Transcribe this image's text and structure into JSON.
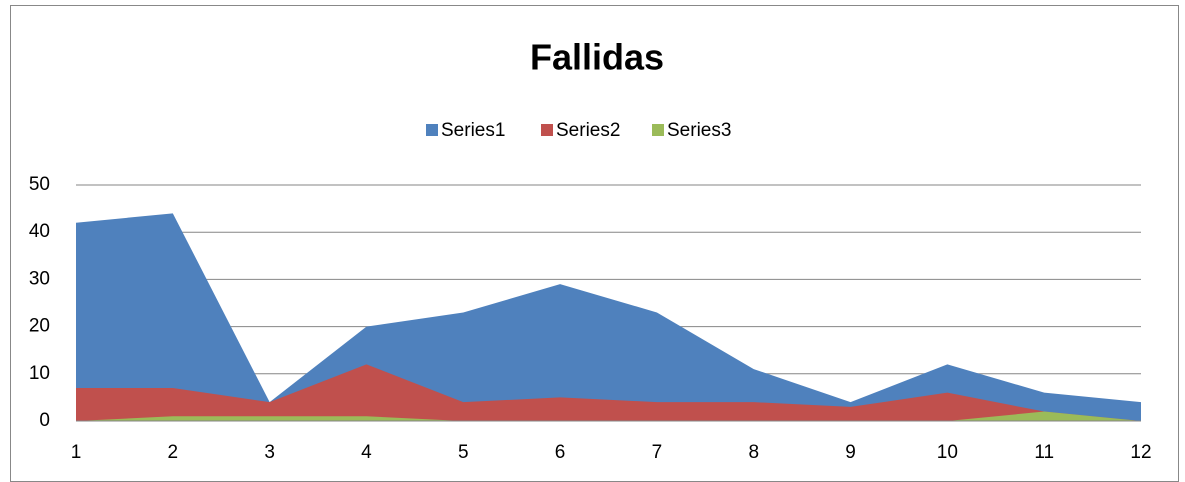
{
  "chart_data": {
    "type": "area",
    "title": "Fallidas",
    "x": [
      1,
      2,
      3,
      4,
      5,
      6,
      7,
      8,
      9,
      10,
      11,
      12
    ],
    "series": [
      {
        "name": "Series1",
        "color": "#4f81bd",
        "values": [
          42,
          44,
          4,
          20,
          23,
          29,
          23,
          11,
          4,
          12,
          6,
          4
        ]
      },
      {
        "name": "Series2",
        "color": "#c0504d",
        "values": [
          7,
          7,
          4,
          12,
          4,
          5,
          4,
          4,
          3,
          6,
          2,
          0
        ]
      },
      {
        "name": "Series3",
        "color": "#9bbb59",
        "values": [
          0,
          1,
          1,
          1,
          0,
          0,
          0,
          0,
          0,
          0,
          2,
          0
        ]
      }
    ],
    "xlim": [
      1,
      12
    ],
    "xticks": [
      1,
      2,
      3,
      4,
      5,
      6,
      7,
      8,
      9,
      10,
      11,
      12
    ],
    "ylim": [
      0,
      50
    ],
    "yticks": [
      0,
      10,
      20,
      30,
      40,
      50
    ],
    "grid": true,
    "legend": "top"
  }
}
